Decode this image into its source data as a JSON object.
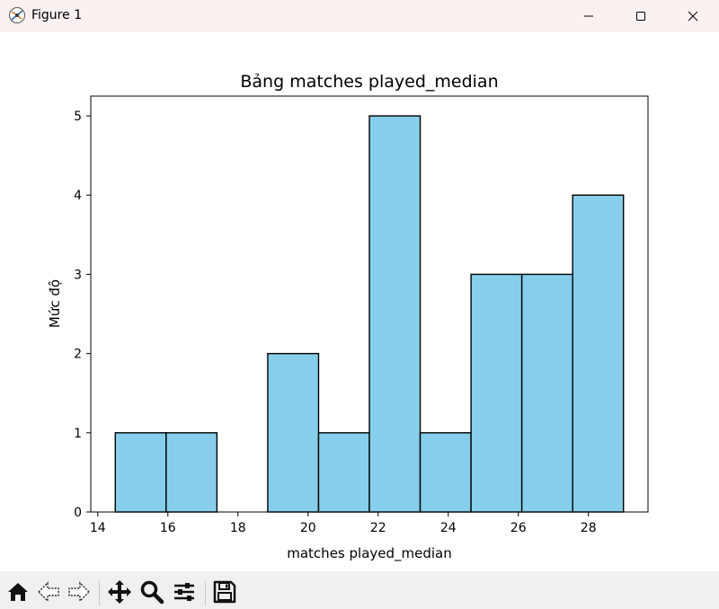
{
  "window": {
    "title": "Figure 1",
    "icons": [
      "app-icon",
      "minimize-icon",
      "maximize-icon",
      "close-icon"
    ]
  },
  "toolbar": {
    "items": [
      "home-icon",
      "back-icon",
      "forward-icon",
      "pan-icon",
      "zoom-icon",
      "configure-subplots-icon",
      "save-icon"
    ]
  },
  "colors": {
    "bar_fill": "#87ceeb",
    "bar_edge": "#000000",
    "titlebar": "#f9f1ef",
    "toolbar": "#f0f0f0"
  },
  "chart_data": {
    "type": "bar",
    "subtype": "histogram",
    "title": "Bảng matches played_median",
    "xlabel": "matches played_median",
    "ylabel": "Mức độ",
    "xlim": [
      13.8,
      29.7
    ],
    "ylim": [
      0,
      5.25
    ],
    "xticks": [
      14,
      16,
      18,
      20,
      22,
      24,
      26,
      28
    ],
    "yticks": [
      0,
      1,
      2,
      3,
      4,
      5
    ],
    "bins": [
      {
        "start": 14.5,
        "end": 15.95,
        "count": 1
      },
      {
        "start": 15.95,
        "end": 17.4,
        "count": 1
      },
      {
        "start": 17.4,
        "end": 18.85,
        "count": 0
      },
      {
        "start": 18.85,
        "end": 20.3,
        "count": 2
      },
      {
        "start": 20.3,
        "end": 21.75,
        "count": 1
      },
      {
        "start": 21.75,
        "end": 23.2,
        "count": 5
      },
      {
        "start": 23.2,
        "end": 24.65,
        "count": 1
      },
      {
        "start": 24.65,
        "end": 26.1,
        "count": 3
      },
      {
        "start": 26.1,
        "end": 27.55,
        "count": 3
      },
      {
        "start": 27.55,
        "end": 29.0,
        "count": 4
      }
    ],
    "grid": false,
    "legend": "none"
  }
}
